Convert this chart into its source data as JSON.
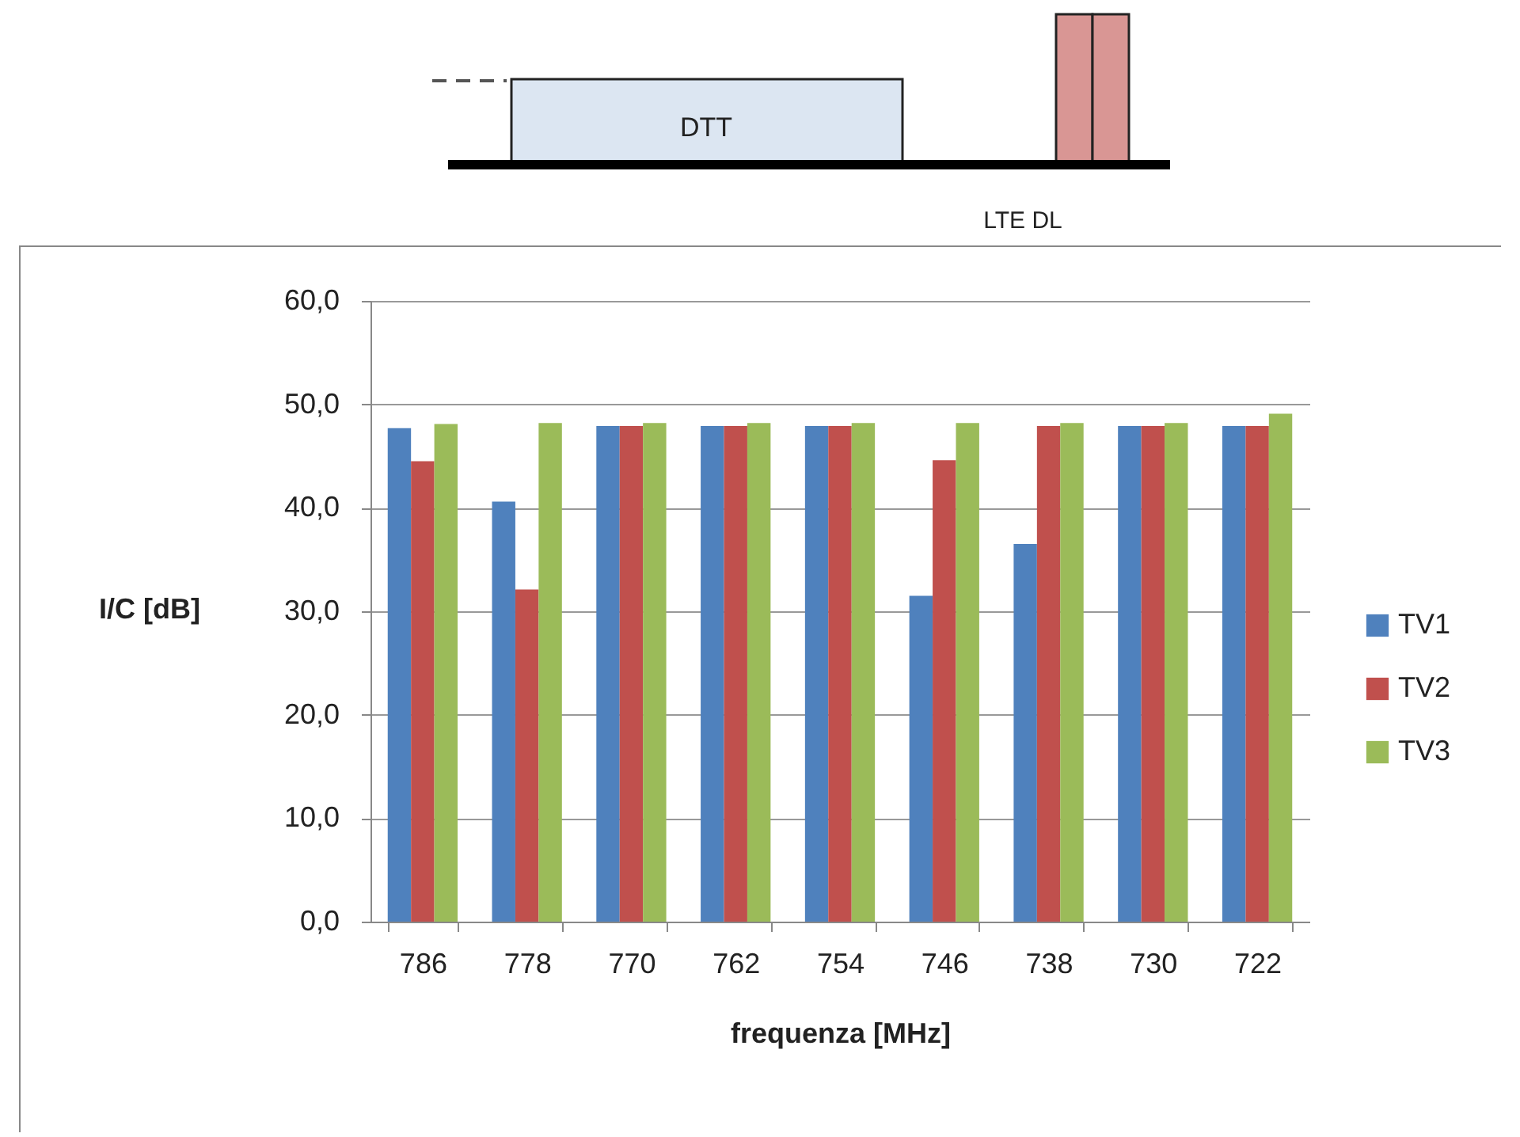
{
  "chart_data": {
    "type": "bar",
    "xlabel": "frequenza [MHz]",
    "ylabel": "I/C [dB]",
    "categories": [
      "786",
      "778",
      "770",
      "762",
      "754",
      "746",
      "738",
      "730",
      "722"
    ],
    "series": [
      {
        "name": "TV1",
        "color": "#4f81bd",
        "values": [
          47.7,
          40.6,
          47.9,
          47.9,
          47.9,
          31.5,
          36.5,
          47.9,
          47.9
        ]
      },
      {
        "name": "TV2",
        "color": "#c0504d",
        "values": [
          44.5,
          32.1,
          47.9,
          47.9,
          47.9,
          44.6,
          47.9,
          47.9,
          47.9
        ]
      },
      {
        "name": "TV3",
        "color": "#9bbb59",
        "values": [
          48.1,
          48.2,
          48.2,
          48.2,
          48.2,
          48.2,
          48.2,
          48.2,
          49.1
        ]
      }
    ],
    "ylim": [
      0,
      60
    ],
    "yticks": [
      {
        "value": 0,
        "label": "0,0"
      },
      {
        "value": 10,
        "label": "10,0"
      },
      {
        "value": 20,
        "label": "20,0"
      },
      {
        "value": 30,
        "label": "30,0"
      },
      {
        "value": 40,
        "label": "40,0"
      },
      {
        "value": 50,
        "label": "50,0"
      },
      {
        "value": 60,
        "label": "60,0"
      }
    ],
    "grid": "y",
    "legend": "right",
    "annotations": [
      "DTT",
      "LTE DL"
    ]
  }
}
